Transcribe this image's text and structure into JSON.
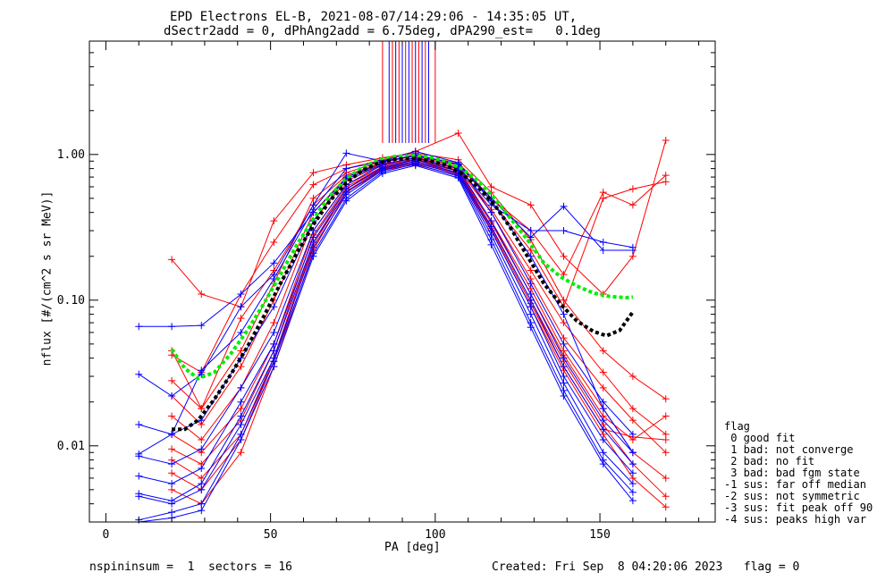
{
  "title": {
    "line1": "EPD Electrons EL-B, 2021-08-07/14:29:06 - 14:35:05 UT,",
    "line2": "dSectr2add = 0, dPhAng2add = 6.75deg, dPA290_est=   0.1deg"
  },
  "footer": {
    "left": "nspininsum =  1  sectors = 16",
    "right": "Created: Fri Sep  8 04:20:06 2023   flag = 0"
  },
  "flag_legend": {
    "header": "flag",
    "items": [
      " 0 good fit",
      " 1 bad: not converge",
      " 2 bad: no fit",
      " 3 bad: bad fgm state",
      "-1 sus: far off median",
      "-2 sus: not symmetric",
      "-3 sus: fit peak off 90",
      "-4 sus: peaks high var"
    ]
  },
  "chart_data": {
    "type": "line",
    "xlabel": "PA [deg]",
    "ylabel": "nflux [#/(cm^2 s sr MeV)]",
    "xlim": [
      -5,
      185
    ],
    "ylim": [
      0.003,
      6.0
    ],
    "yscale": "log",
    "x_ticks": [
      0,
      50,
      100,
      150
    ],
    "y_ticks": [
      0.01,
      0.1,
      1.0
    ],
    "y_tick_labels": [
      "0.01",
      "0.10",
      "1.00"
    ],
    "colors": {
      "red": "#ff0000",
      "blue": "#0000ff",
      "green": "#00ee00",
      "black": "#000000"
    },
    "pa_grid": [
      10,
      20,
      29,
      41,
      51,
      63,
      73,
      84,
      94,
      107,
      117,
      129,
      139,
      151,
      160,
      170
    ],
    "red_traces": [
      [
        null,
        0.045,
        0.018,
        0.075,
        0.16,
        0.45,
        0.72,
        0.88,
        0.98,
        0.82,
        0.42,
        0.16,
        0.07,
        0.032,
        0.018,
        0.012
      ],
      [
        null,
        0.19,
        0.11,
        0.09,
        0.35,
        0.75,
        0.85,
        0.95,
        1.02,
        0.92,
        0.55,
        0.26,
        0.1,
        0.045,
        0.03,
        0.021
      ],
      [
        null,
        0.012,
        0.009,
        0.018,
        0.05,
        0.3,
        0.62,
        0.82,
        0.92,
        0.78,
        0.35,
        0.12,
        0.045,
        0.018,
        0.009,
        0.006
      ],
      [
        null,
        0.008,
        0.006,
        0.012,
        0.04,
        0.25,
        0.58,
        0.8,
        0.88,
        0.75,
        0.32,
        0.1,
        0.038,
        0.014,
        0.0075,
        0.0045
      ],
      [
        null,
        0.005,
        0.004,
        0.009,
        0.035,
        0.22,
        0.55,
        0.78,
        0.85,
        0.72,
        0.3,
        0.09,
        0.033,
        0.012,
        0.006,
        0.0038
      ],
      [
        null,
        0.042,
        0.032,
        0.11,
        0.25,
        0.62,
        0.8,
        0.92,
        1.05,
        1.4,
        0.6,
        0.45,
        0.2,
        0.11,
        0.2,
        1.25
      ],
      [
        null,
        0.022,
        0.014,
        0.035,
        0.1,
        0.4,
        0.7,
        0.86,
        0.95,
        0.85,
        0.48,
        0.22,
        0.09,
        0.5,
        0.58,
        0.65
      ],
      [
        null,
        0.028,
        0.018,
        0.045,
        0.13,
        0.5,
        0.75,
        0.9,
        0.97,
        0.88,
        0.5,
        0.3,
        0.15,
        0.55,
        0.45,
        0.72
      ],
      [
        null,
        0.016,
        0.011,
        0.025,
        0.07,
        0.35,
        0.66,
        0.84,
        0.93,
        0.8,
        0.4,
        0.14,
        0.055,
        0.025,
        0.015,
        0.009
      ],
      [
        null,
        0.0095,
        0.0075,
        0.015,
        0.045,
        0.28,
        0.6,
        0.81,
        0.9,
        0.77,
        0.34,
        0.11,
        0.042,
        0.016,
        0.011,
        0.016
      ],
      [
        null,
        0.0065,
        0.005,
        0.011,
        0.038,
        0.24,
        0.56,
        0.79,
        0.87,
        0.74,
        0.31,
        0.095,
        0.035,
        0.013,
        0.0115,
        0.011
      ]
    ],
    "blue_traces": [
      [
        0.066,
        0.066,
        0.067,
        0.11,
        0.18,
        0.4,
        0.68,
        0.85,
        0.95,
        0.8,
        0.45,
        0.3,
        0.3,
        0.25,
        0.23,
        null
      ],
      [
        0.031,
        0.022,
        0.031,
        0.09,
        0.15,
        0.45,
        1.02,
        0.9,
        0.98,
        0.86,
        0.5,
        0.27,
        0.44,
        0.22,
        0.22,
        null
      ],
      [
        0.014,
        0.012,
        0.015,
        0.04,
        0.09,
        0.35,
        0.7,
        0.88,
        1.0,
        0.85,
        0.4,
        0.13,
        0.05,
        0.02,
        0.012,
        null
      ],
      [
        0.0085,
        0.0075,
        0.0095,
        0.025,
        0.06,
        0.3,
        0.62,
        0.85,
        0.95,
        0.8,
        0.35,
        0.11,
        0.04,
        0.015,
        0.009,
        null
      ],
      [
        0.0062,
        0.0055,
        0.007,
        0.02,
        0.05,
        0.27,
        0.58,
        0.82,
        0.92,
        0.77,
        0.32,
        0.1,
        0.035,
        0.013,
        0.0075,
        null
      ],
      [
        0.0047,
        0.0042,
        0.0055,
        0.016,
        0.045,
        0.25,
        0.55,
        0.8,
        0.9,
        0.75,
        0.3,
        0.09,
        0.03,
        0.011,
        0.0065,
        null
      ],
      [
        0.0045,
        0.004,
        0.005,
        0.014,
        0.04,
        0.23,
        0.53,
        0.78,
        0.88,
        0.73,
        0.28,
        0.08,
        0.027,
        0.009,
        0.0055,
        null
      ],
      [
        0.0031,
        0.0035,
        0.004,
        0.012,
        0.038,
        0.21,
        0.5,
        0.76,
        0.86,
        0.71,
        0.26,
        0.07,
        0.024,
        0.008,
        0.0048,
        null
      ],
      [
        0.0025,
        0.0032,
        0.0036,
        0.011,
        0.035,
        0.2,
        0.48,
        0.74,
        0.84,
        0.69,
        0.24,
        0.065,
        0.022,
        0.0075,
        0.0042,
        null
      ],
      [
        0.0088,
        0.012,
        0.033,
        0.06,
        0.14,
        0.42,
        0.8,
        0.9,
        1.05,
        0.88,
        0.48,
        0.2,
        0.08,
        0.018,
        0.009,
        null
      ]
    ],
    "green_fit": {
      "x": [
        20,
        24,
        28,
        33,
        38,
        43,
        48,
        53,
        58,
        63,
        68,
        73,
        78,
        83,
        88,
        93,
        98,
        103,
        108,
        113,
        118,
        123,
        128,
        133,
        138,
        143,
        148,
        153,
        158,
        160
      ],
      "y": [
        0.046,
        0.034,
        0.029,
        0.032,
        0.043,
        0.062,
        0.095,
        0.15,
        0.24,
        0.36,
        0.52,
        0.68,
        0.82,
        0.92,
        0.97,
        0.98,
        0.96,
        0.9,
        0.8,
        0.66,
        0.5,
        0.36,
        0.26,
        0.18,
        0.145,
        0.125,
        0.112,
        0.106,
        0.104,
        0.105
      ]
    },
    "black_fit": {
      "x": [
        20,
        24,
        28,
        33,
        38,
        43,
        48,
        53,
        58,
        63,
        68,
        73,
        78,
        83,
        88,
        93,
        98,
        103,
        108,
        113,
        118,
        123,
        128,
        133,
        138,
        143,
        148,
        152,
        156,
        160
      ],
      "y": [
        0.013,
        0.013,
        0.015,
        0.021,
        0.031,
        0.048,
        0.078,
        0.13,
        0.21,
        0.33,
        0.48,
        0.64,
        0.78,
        0.88,
        0.93,
        0.94,
        0.91,
        0.85,
        0.74,
        0.6,
        0.45,
        0.31,
        0.2,
        0.13,
        0.094,
        0.072,
        0.061,
        0.057,
        0.062,
        0.083
      ]
    }
  }
}
